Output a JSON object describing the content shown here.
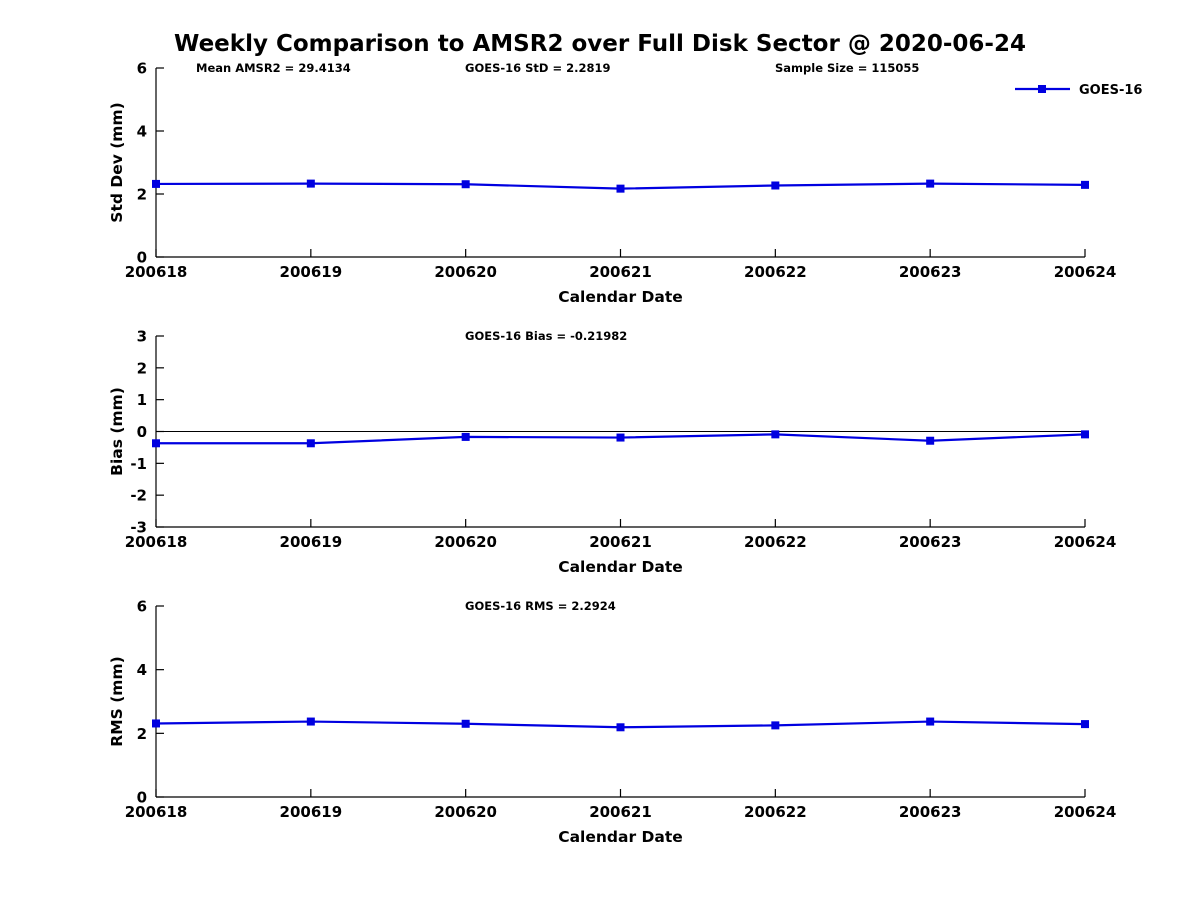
{
  "title": "Weekly Comparison to AMSR2 over Full Disk Sector @ 2020-06-24",
  "colors": {
    "series": "#0000e0",
    "axis": "#000000",
    "background": "#ffffff"
  },
  "legend": {
    "label": "GOES-16",
    "marker": "filled-square-on-line",
    "color": "#0000e0",
    "position": "top-right"
  },
  "chart_data": [
    {
      "type": "line",
      "subplot": "std-dev",
      "annotations": [
        "Mean AMSR2 = 29.4134",
        "GOES-16 StD = 2.2819",
        "Sample Size = 115055"
      ],
      "xlabel": "Calendar Date",
      "ylabel": "Std Dev (mm)",
      "categories": [
        "200618",
        "200619",
        "200620",
        "200621",
        "200622",
        "200623",
        "200624"
      ],
      "series": [
        {
          "name": "GOES-16",
          "values": [
            2.32,
            2.33,
            2.31,
            2.17,
            2.27,
            2.33,
            2.29
          ]
        }
      ],
      "ylim": [
        0,
        6
      ],
      "yticks": [
        0,
        2,
        4,
        6
      ],
      "zero_line": false,
      "show_legend": true,
      "grid": false
    },
    {
      "type": "line",
      "subplot": "bias",
      "annotations": [
        "GOES-16 Bias  = -0.21982"
      ],
      "xlabel": "Calendar Date",
      "ylabel": "Bias (mm)",
      "categories": [
        "200618",
        "200619",
        "200620",
        "200621",
        "200622",
        "200623",
        "200624"
      ],
      "series": [
        {
          "name": "GOES-16",
          "values": [
            -0.37,
            -0.37,
            -0.17,
            -0.19,
            -0.09,
            -0.29,
            -0.09
          ]
        }
      ],
      "ylim": [
        -3,
        3
      ],
      "yticks": [
        -3,
        -2,
        -1,
        0,
        1,
        2,
        3
      ],
      "zero_line": true,
      "show_legend": false,
      "grid": false
    },
    {
      "type": "line",
      "subplot": "rms",
      "annotations": [
        "GOES-16 RMS = 2.2924"
      ],
      "xlabel": "Calendar Date",
      "ylabel": "RMS (mm)",
      "categories": [
        "200618",
        "200619",
        "200620",
        "200621",
        "200622",
        "200623",
        "200624"
      ],
      "series": [
        {
          "name": "GOES-16",
          "values": [
            2.31,
            2.37,
            2.3,
            2.19,
            2.25,
            2.37,
            2.29
          ]
        }
      ],
      "ylim": [
        0,
        6
      ],
      "yticks": [
        0,
        2,
        4,
        6
      ],
      "zero_line": false,
      "show_legend": false,
      "grid": false
    }
  ]
}
